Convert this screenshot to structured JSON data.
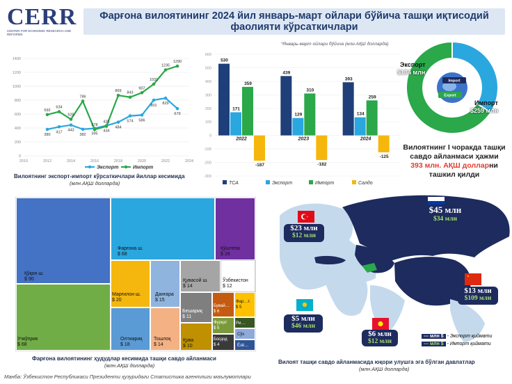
{
  "logo": {
    "name": "CERR",
    "subtitle": "CENTER FOR ECONOMIC RESEARCH AND REFORMS"
  },
  "title": {
    "part1": "Фарғона вилоятининг ",
    "year": "2024",
    "part2": " йил январь-март ойлари бўйича ташқи иқтисодий фаолияти кўрсаткичлари"
  },
  "colors": {
    "export": "#2aa7df",
    "import": "#2aa84a",
    "tsa": "#1f3f7a",
    "saldo": "#f5b70d"
  },
  "line_chart": {
    "caption": "Вилоятнинг экспорт-импорт кўрсаткичлари йиллар кесимида",
    "caption_sub": "(млн.АҚШ долларда)"
  },
  "bar_chart": {
    "note": "*Январь-март ойлари бўйича (млн.АҚШ долларда)"
  },
  "donut": {
    "export_label": "Экспорт",
    "export_value": "$134 млн",
    "import_label": "Импорт",
    "import_value": "$259 млн",
    "globe_import": "Import",
    "globe_export": "Export",
    "text_line1": "Вилоятнинг I чоракда ташқи",
    "text_line2": "савдо айланмаси ҳажми",
    "text_highlight": "393 млн. АҚШ доллар",
    "text_highlight_tail": "ни",
    "text_line4": "ташкил қилди"
  },
  "treemap": {
    "caption": "Фарғона вилоятининг ҳудудлар кесимида ташқи савдо айланмаси",
    "caption_sub": "(млн.АҚШ долларда)",
    "items": [
      {
        "name": "Қўқон ш.",
        "value": "$ 90",
        "color": "#4472c4"
      },
      {
        "name": "Учкўприк",
        "value": "$ 68",
        "color": "#70ad47"
      },
      {
        "name": "Фарғона ш.",
        "value": "$ 68",
        "color": "#2aa7df"
      },
      {
        "name": "Қўштепа",
        "value": "$ 28",
        "color": "#7030a0"
      },
      {
        "name": "Марғилон ш.",
        "value": "$ 20",
        "color": "#f5b70d"
      },
      {
        "name": "Данғара",
        "value": "$ 15",
        "color": "#8fb4de"
      },
      {
        "name": "Қувасой ш.",
        "value": "$ 14",
        "color": "#a5a5a5"
      },
      {
        "name": "Ўзбекистон",
        "value": "$ 12",
        "color": "#ffffff"
      },
      {
        "name": "Олтиариқ",
        "value": "$ 18",
        "color": "#5b9bd5"
      },
      {
        "name": "Тошлоқ",
        "value": "$ 14",
        "color": "#f4b183"
      },
      {
        "name": "Бешариқ",
        "value": "$ 11",
        "color": "#7f7f7f"
      },
      {
        "name": "Бувай…",
        "value": "$ 6",
        "color": "#c55a11"
      },
      {
        "name": "Фар…т.",
        "value": "$ 5",
        "color": "#ffc000"
      },
      {
        "name": "Фурқат",
        "value": "$ 5",
        "color": "#7a9a3a"
      },
      {
        "name": "Ри…",
        "value": "",
        "color": "#375623"
      },
      {
        "name": "Қува",
        "value": "$ 10",
        "color": "#bf9000"
      },
      {
        "name": "Боғдод",
        "value": "$ 4",
        "color": "#3a3a3a"
      },
      {
        "name": "Сўх",
        "value": "",
        "color": "#8eaadb"
      },
      {
        "name": "Ёзё…",
        "value": "",
        "color": "#2f5496"
      }
    ]
  },
  "map": {
    "caption": "Вилоят ташқи савдо айланмасида юқори улушга эга бўлган давлатлар",
    "caption_sub": "(млн.АҚШ долларда)",
    "countries": [
      {
        "country": "Россия",
        "export": "$45 млн",
        "import": "$34 млн"
      },
      {
        "country": "Туркия",
        "export": "$23 млн",
        "import": "$12 млн"
      },
      {
        "country": "Хитой",
        "export": "$13 млн",
        "import": "$109 млн"
      },
      {
        "country": "Қозоғистон",
        "export": "$5 млн",
        "import": "$46 млн"
      },
      {
        "country": "Қирғизистон",
        "export": "$6 млн",
        "import": "$12 млн"
      }
    ],
    "legend": [
      {
        "key": "--- млн $",
        "text": "- Экспорт қиймати"
      },
      {
        "key": "--- млн $",
        "text": "- Импорт қиймати"
      }
    ]
  },
  "footer": "Манба: Ўзбекистон Республикаси Президенти ҳузуридаги Статистика агентлиги маълумотлари",
  "chart_data": [
    {
      "type": "line",
      "title": "Вилоятнинг экспорт-импорт кўрсаткичлари йиллар кесимида",
      "x": [
        2012,
        2013,
        2014,
        2015,
        2016,
        2017,
        2018,
        2019,
        2020,
        2021,
        2022,
        2023
      ],
      "series": [
        {
          "name": "Экспорт",
          "values": [
            380,
            417,
            443,
            382,
            395,
            434,
            484,
            574,
            586,
            801,
            829,
            679
          ]
        },
        {
          "name": "Импорт",
          "values": [
            592,
            634,
            525,
            786,
            378,
            425,
            869,
            843,
            907,
            1031,
            1235,
            1290
          ]
        }
      ],
      "x_ticks": [
        2010,
        2012,
        2014,
        2016,
        2018,
        2020,
        2022,
        2024
      ],
      "y_ticks": [
        0,
        200,
        400,
        600,
        800,
        1000,
        1200,
        1400
      ],
      "xlim": [
        2010,
        2024
      ],
      "ylim": [
        0,
        1400
      ]
    },
    {
      "type": "bar",
      "categories": [
        "2022",
        "2023",
        "2024"
      ],
      "series": [
        {
          "name": "ТСА",
          "values": [
            530,
            439,
            393
          ]
        },
        {
          "name": "Экспорт",
          "values": [
            171,
            129,
            134
          ]
        },
        {
          "name": "Импорт",
          "values": [
            359,
            310,
            259
          ]
        },
        {
          "name": "Салдо",
          "values": [
            -187,
            -182,
            -125
          ]
        }
      ],
      "y_ticks": [
        -300,
        -200,
        -100,
        0,
        100,
        200,
        300,
        400,
        500,
        600
      ],
      "ylim": [
        -300,
        600
      ]
    },
    {
      "type": "pie",
      "labels": [
        "Экспорт",
        "Импорт"
      ],
      "values": [
        134,
        259
      ]
    }
  ]
}
